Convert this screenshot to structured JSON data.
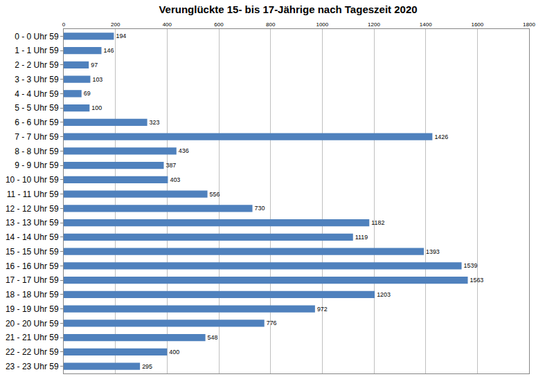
{
  "chart_data": {
    "type": "bar",
    "title": "Verunglückte 15- bis 17-Jährige nach Tageszeit 2020",
    "orientation": "horizontal",
    "categories": [
      "0 - 0 Uhr 59",
      "1 - 1 Uhr 59",
      "2 - 2 Uhr 59",
      "3 - 3 Uhr 59",
      "4 - 4 Uhr 59",
      "5 - 5 Uhr 59",
      "6 - 6 Uhr 59",
      "7 - 7 Uhr 59",
      "8 - 8 Uhr 59",
      "9 - 9 Uhr 59",
      "10 - 10 Uhr 59",
      "11 - 11 Uhr 59",
      "12 - 12 Uhr 59",
      "13 - 13 Uhr 59",
      "14 - 14 Uhr 59",
      "15 - 15 Uhr 59",
      "16 - 16 Uhr 59",
      "17 - 17 Uhr 59",
      "18 - 18 Uhr 59",
      "19 - 19 Uhr 59",
      "20 - 20 Uhr 59",
      "21 - 21 Uhr 59",
      "22 - 22 Uhr 59",
      "23 - 23 Uhr 59"
    ],
    "values": [
      194,
      146,
      97,
      103,
      69,
      100,
      323,
      1426,
      436,
      387,
      403,
      556,
      730,
      1182,
      1119,
      1393,
      1539,
      1563,
      1203,
      972,
      776,
      548,
      400,
      295
    ],
    "color": "#4f81bd",
    "xlim": [
      0,
      1800
    ],
    "xticks": [
      0,
      200,
      400,
      600,
      800,
      1000,
      1200,
      1400,
      1600,
      1800
    ],
    "grid": true,
    "data_labels": true
  }
}
